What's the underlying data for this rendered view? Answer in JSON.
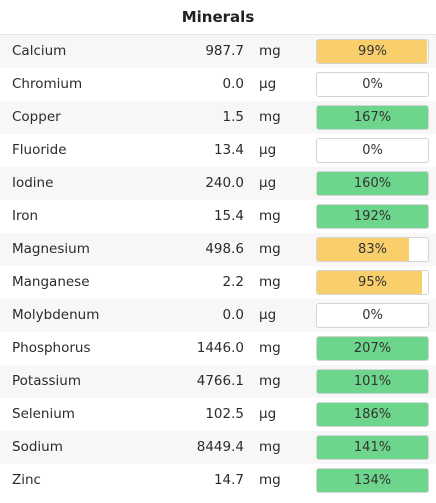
{
  "panel": {
    "title": "Minerals"
  },
  "colors": {
    "under": "#f8cf6a",
    "over": "#6dd58c"
  },
  "minerals": [
    {
      "name": "Calcium",
      "amount": "987.7",
      "unit": "mg",
      "percent_label": "99%",
      "percent": 99,
      "status": "under"
    },
    {
      "name": "Chromium",
      "amount": "0.0",
      "unit": "µg",
      "percent_label": "0%",
      "percent": 0,
      "status": "under"
    },
    {
      "name": "Copper",
      "amount": "1.5",
      "unit": "mg",
      "percent_label": "167%",
      "percent": 167,
      "status": "over"
    },
    {
      "name": "Fluoride",
      "amount": "13.4",
      "unit": "µg",
      "percent_label": "0%",
      "percent": 0,
      "status": "under"
    },
    {
      "name": "Iodine",
      "amount": "240.0",
      "unit": "µg",
      "percent_label": "160%",
      "percent": 160,
      "status": "over"
    },
    {
      "name": "Iron",
      "amount": "15.4",
      "unit": "mg",
      "percent_label": "192%",
      "percent": 192,
      "status": "over"
    },
    {
      "name": "Magnesium",
      "amount": "498.6",
      "unit": "mg",
      "percent_label": "83%",
      "percent": 83,
      "status": "under"
    },
    {
      "name": "Manganese",
      "amount": "2.2",
      "unit": "mg",
      "percent_label": "95%",
      "percent": 95,
      "status": "under"
    },
    {
      "name": "Molybdenum",
      "amount": "0.0",
      "unit": "µg",
      "percent_label": "0%",
      "percent": 0,
      "status": "under"
    },
    {
      "name": "Phosphorus",
      "amount": "1446.0",
      "unit": "mg",
      "percent_label": "207%",
      "percent": 207,
      "status": "over"
    },
    {
      "name": "Potassium",
      "amount": "4766.1",
      "unit": "mg",
      "percent_label": "101%",
      "percent": 101,
      "status": "over"
    },
    {
      "name": "Selenium",
      "amount": "102.5",
      "unit": "µg",
      "percent_label": "186%",
      "percent": 186,
      "status": "over"
    },
    {
      "name": "Sodium",
      "amount": "8449.4",
      "unit": "mg",
      "percent_label": "141%",
      "percent": 141,
      "status": "over"
    },
    {
      "name": "Zinc",
      "amount": "14.7",
      "unit": "mg",
      "percent_label": "134%",
      "percent": 134,
      "status": "over"
    }
  ]
}
